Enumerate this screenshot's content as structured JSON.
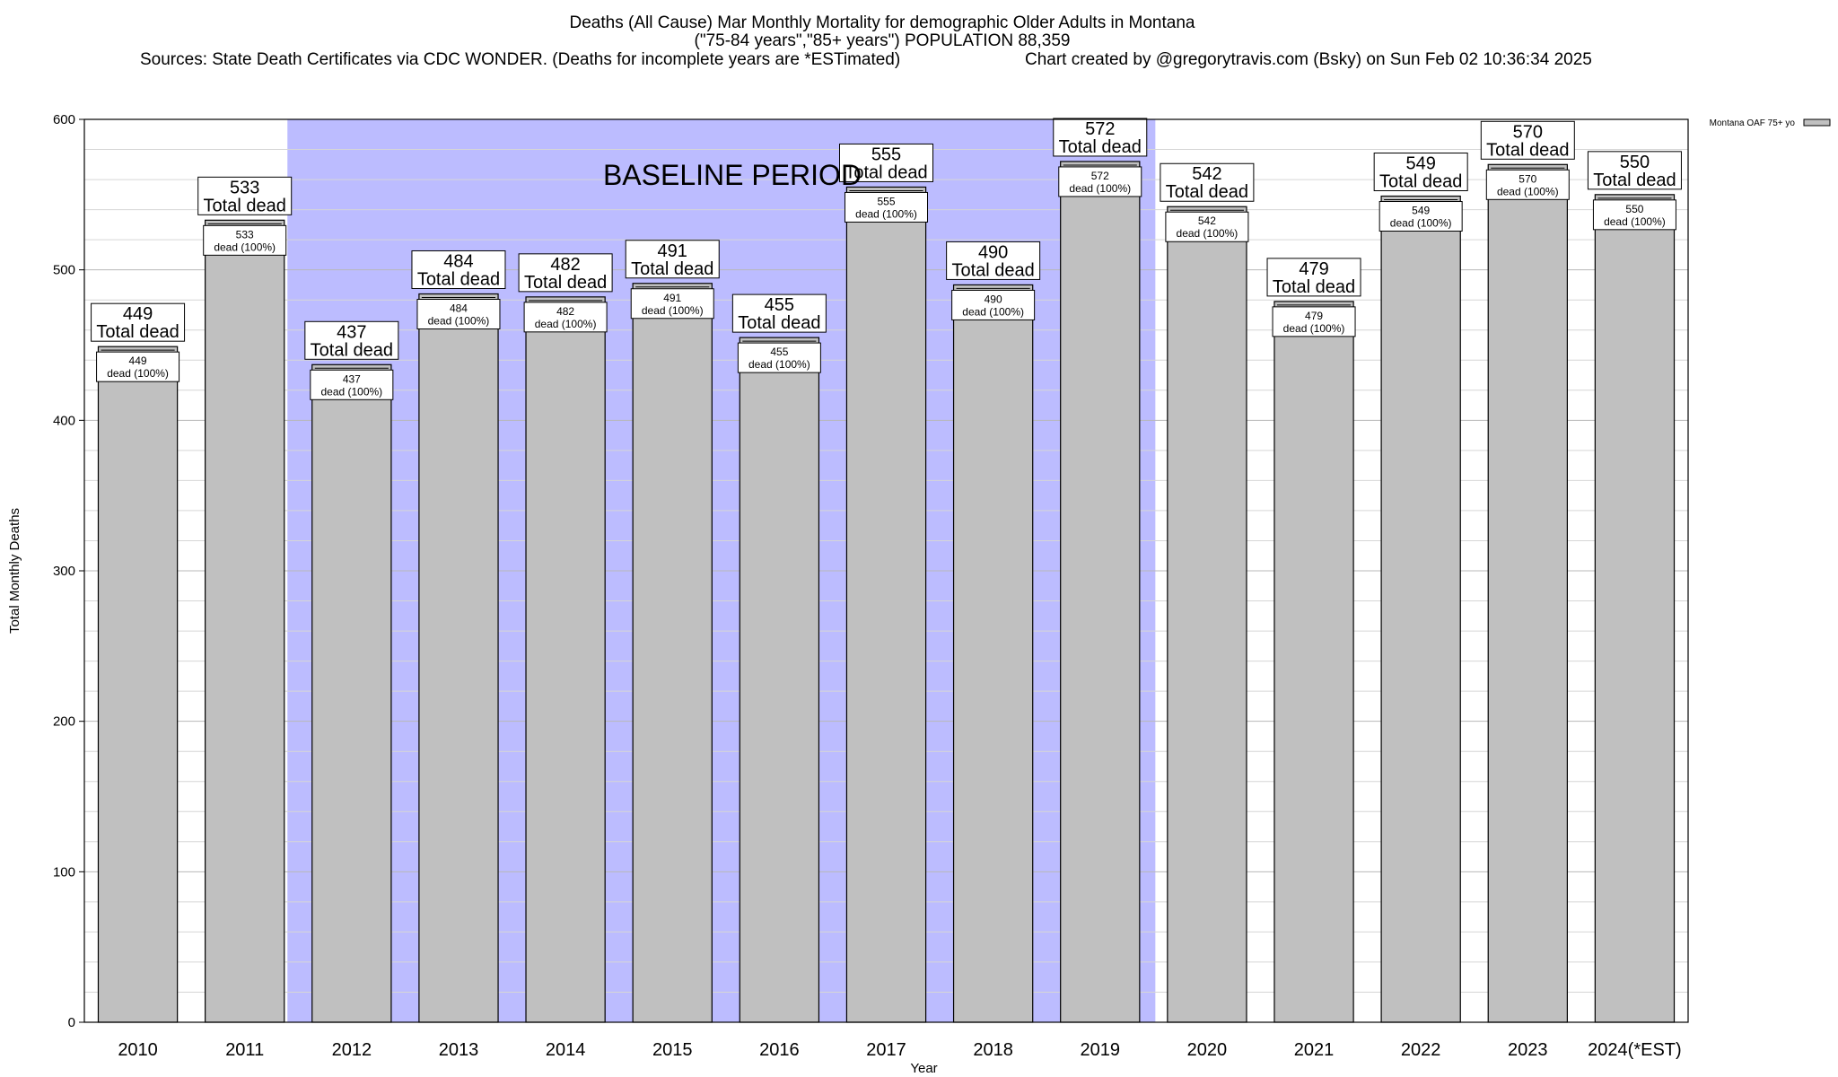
{
  "chart_data": {
    "type": "bar",
    "title_lines": [
      "Deaths (All Cause) Mar Monthly Mortality for demographic Older Adults in Montana",
      "(\"75-84 years\",\"85+ years\") POPULATION 88,359"
    ],
    "sources": "Sources: State Death Certificates via CDC WONDER. (Deaths for incomplete years are *ESTimated)",
    "credit": "Chart created by @gregorytravis.com (Bsky) on Sun Feb 02 10:36:34 2025",
    "xlabel": "Year",
    "ylabel": "Total Monthly Deaths",
    "ylim": [
      0,
      600
    ],
    "yticks": [
      0,
      100,
      200,
      300,
      400,
      500,
      600
    ],
    "minor_step": 20,
    "categories": [
      "2010",
      "2011",
      "2012",
      "2013",
      "2014",
      "2015",
      "2016",
      "2017",
      "2018",
      "2019",
      "2020",
      "2021",
      "2022",
      "2023",
      "2024(*EST)"
    ],
    "series": [
      {
        "name": "Montana OAF 75+ yo",
        "color": "#c0c0c0",
        "values": [
          449,
          533,
          437,
          484,
          482,
          491,
          455,
          555,
          490,
          572,
          542,
          479,
          549,
          570,
          550
        ]
      }
    ],
    "top_label_suffix": "Total dead",
    "inner_label_suffix": "dead (100%)",
    "baseline": {
      "label": "BASELINE PERIOD",
      "from_category": "2012",
      "to_category": "2019",
      "color": "#bcbcff"
    },
    "legend": {
      "label": "Montana OAF 75+ yo",
      "placement": "top-right outside"
    }
  }
}
